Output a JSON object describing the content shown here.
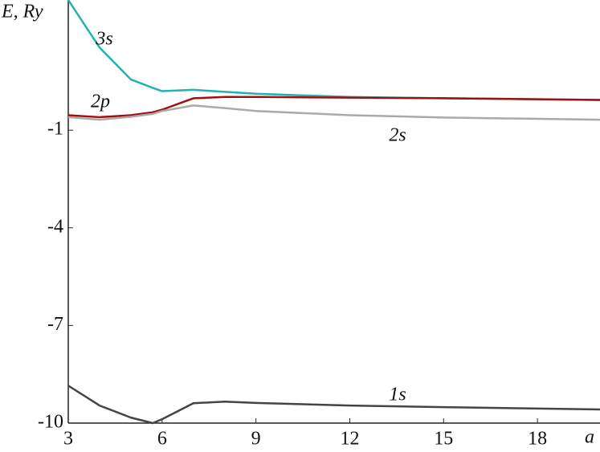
{
  "chart_data": {
    "type": "line",
    "y_label": "E, Ry",
    "x_label": "a",
    "xlim": [
      3,
      20
    ],
    "ylim": [
      -10,
      3
    ],
    "xticks": [
      3,
      6,
      9,
      12,
      15,
      18
    ],
    "yticks": [
      -10,
      -7,
      -4,
      -1
    ],
    "x": [
      3,
      4,
      5,
      5.7,
      6,
      7,
      8,
      9,
      12,
      15,
      20
    ],
    "series": [
      {
        "name": "3s",
        "color": "#1fb3b3",
        "values": [
          3,
          1.54,
          0.56,
          0.3,
          0.2,
          0.24,
          0.18,
          0.12,
          0.02,
          -0.02,
          -0.07
        ]
      },
      {
        "name": "2p",
        "color": "#a01010",
        "values": [
          -0.54,
          -0.6,
          -0.54,
          -0.45,
          -0.37,
          -0.02,
          0.02,
          0.02,
          0,
          -0.02,
          -0.07
        ]
      },
      {
        "name": "2s",
        "color": "#aaaaaa",
        "values": [
          -0.6,
          -0.68,
          -0.59,
          -0.5,
          -0.41,
          -0.24,
          -0.32,
          -0.41,
          -0.54,
          -0.61,
          -0.68
        ]
      },
      {
        "name": "1s",
        "color": "#444444",
        "values": [
          -8.85,
          -9.46,
          -9.83,
          -10,
          -9.88,
          -9.39,
          -9.34,
          -9.38,
          -9.46,
          -9.51,
          -9.58
        ]
      }
    ]
  }
}
